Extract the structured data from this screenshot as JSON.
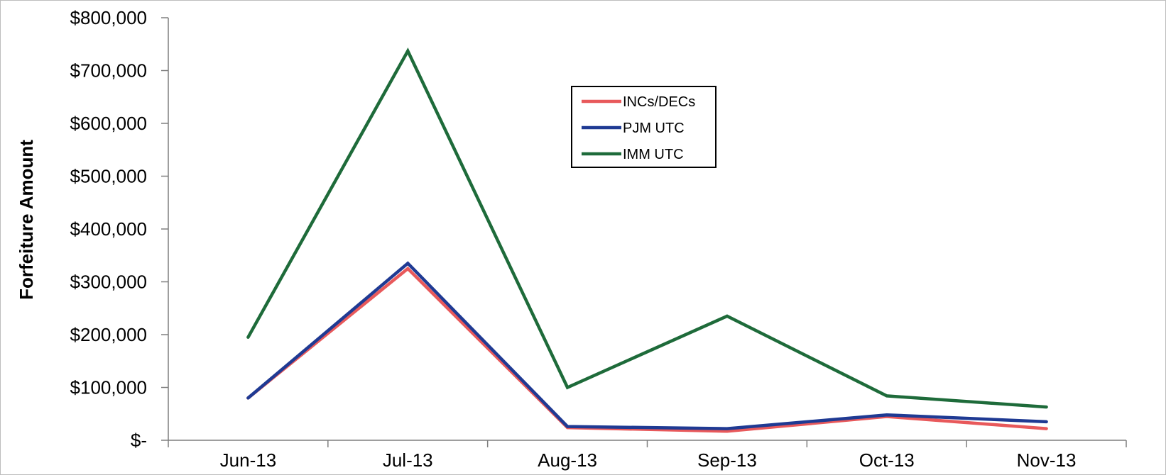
{
  "chart_data": {
    "type": "line",
    "title": "",
    "xlabel": "",
    "ylabel": "Forfeiture Amount",
    "categories": [
      "Jun-13",
      "Jul-13",
      "Aug-13",
      "Sep-13",
      "Oct-13",
      "Nov-13"
    ],
    "ylim": [
      0,
      800000
    ],
    "yticks": [
      0,
      100000,
      200000,
      300000,
      400000,
      500000,
      600000,
      700000,
      800000
    ],
    "ytick_labels": [
      "$-",
      "$100,000",
      "$200,000",
      "$300,000",
      "$400,000",
      "$500,000",
      "$600,000",
      "$700,000",
      "$800,000"
    ],
    "grid": false,
    "legend_position": "top-center",
    "series": [
      {
        "name": "INCs/DECs",
        "color": "#E8595B",
        "values": [
          80000,
          325000,
          24000,
          17000,
          45000,
          22000
        ]
      },
      {
        "name": "PJM UTC",
        "color": "#1F3A93",
        "values": [
          80000,
          335000,
          26000,
          22000,
          48000,
          35000
        ]
      },
      {
        "name": "IMM UTC",
        "color": "#1E6B3A",
        "values": [
          195000,
          737000,
          100000,
          235000,
          84000,
          63000
        ]
      }
    ]
  }
}
